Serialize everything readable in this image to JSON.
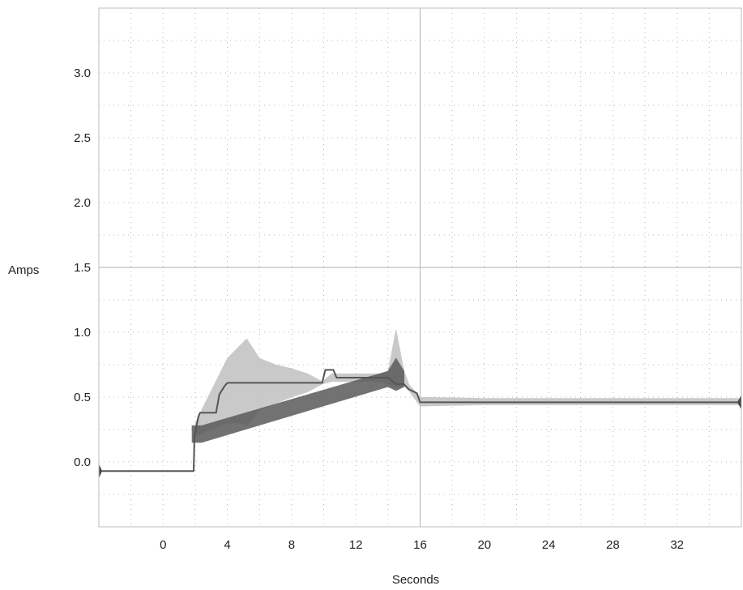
{
  "chart_data": {
    "type": "line",
    "title": "",
    "xlabel": "Seconds",
    "ylabel": "Amps",
    "xlim": [
      -4,
      36
    ],
    "ylim": [
      -0.5,
      3.5
    ],
    "x_ticks": [
      0,
      4,
      8,
      12,
      16,
      20,
      24,
      28,
      32
    ],
    "x_tick_labels": [
      "0",
      "4",
      "8",
      "12",
      "16",
      "20",
      "24",
      "28",
      "32"
    ],
    "y_ticks": [
      0.0,
      0.5,
      1.0,
      1.5,
      2.0,
      2.5,
      3.0
    ],
    "y_tick_labels": [
      "0.0",
      "0.5",
      "1.0",
      "1.5",
      "2.0",
      "2.5",
      "3.0"
    ],
    "grid": "dotted",
    "major_lines": {
      "x": 16,
      "y": 1.5
    },
    "legend": "none",
    "colors": {
      "main": "#555555",
      "noise": "#c4c4c4",
      "dark_noise": "#5a5a5a",
      "grid": "#b8b8b8",
      "frame": "#bdbdbd"
    },
    "series": [
      {
        "style": "step-line",
        "x": [
          -4,
          1.9,
          1.95,
          2.2,
          2.3,
          3.3,
          3.5,
          3.8,
          4.0,
          9.9,
          10.1,
          10.6,
          10.8,
          14.0,
          14.5,
          15.0,
          15.3,
          15.8,
          16.0,
          36
        ],
        "y": [
          -0.07,
          -0.07,
          0.2,
          0.35,
          0.38,
          0.38,
          0.52,
          0.58,
          0.61,
          0.61,
          0.71,
          0.71,
          0.65,
          0.65,
          0.6,
          0.6,
          0.56,
          0.53,
          0.46,
          0.46
        ]
      },
      {
        "style": "noise-band",
        "x": [
          2.0,
          4.0,
          4.8,
          5.2,
          6.0,
          7.0,
          8.0,
          9.0,
          9.9,
          10.5,
          12.0,
          13.5,
          14.0,
          14.5,
          15.0,
          15.3,
          16.0,
          20.0,
          30.0,
          36.0
        ],
        "min": [
          0.2,
          0.3,
          0.3,
          0.28,
          0.4,
          0.45,
          0.5,
          0.54,
          0.6,
          0.62,
          0.62,
          0.62,
          0.6,
          0.58,
          0.58,
          0.55,
          0.43,
          0.44,
          0.44,
          0.44
        ],
        "max": [
          0.3,
          0.8,
          0.9,
          0.95,
          0.8,
          0.75,
          0.72,
          0.68,
          0.62,
          0.68,
          0.68,
          0.68,
          0.7,
          1.02,
          0.7,
          0.6,
          0.5,
          0.49,
          0.49,
          0.49
        ]
      },
      {
        "style": "dark-noise-band",
        "x": [
          1.8,
          2.4,
          14.0,
          14.5,
          15.0
        ],
        "min": [
          0.15,
          0.15,
          0.58,
          0.55,
          0.58
        ],
        "max": [
          0.28,
          0.28,
          0.7,
          0.8,
          0.7
        ]
      }
    ]
  }
}
